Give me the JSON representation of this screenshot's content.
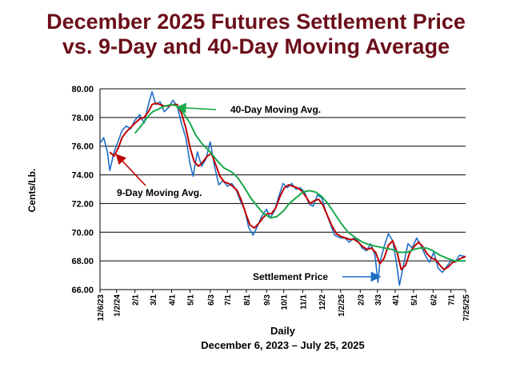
{
  "title_line1": "December 2025 Futures Settlement Price",
  "title_line2": "vs. 9-Day and 40-Day Moving Average",
  "colors": {
    "title": "#6b0f1a",
    "settlement": "#1f6fc5",
    "ma9": "#c00000",
    "ma40": "#1aa84a",
    "grid": "#000000"
  },
  "chart_data": {
    "type": "line",
    "xlabel": "Daily",
    "subtitle": "December 6, 2023 – July 25, 2025",
    "ylabel": "Cents/Lb.",
    "ylim": [
      66.0,
      80.0
    ],
    "yticks": [
      "66.00",
      "68.00",
      "70.00",
      "72.00",
      "74.00",
      "76.00",
      "78.00",
      "80.00"
    ],
    "xlim": [
      "2023-12-06",
      "2025-07-25"
    ],
    "xticks": [
      {
        "label": "12/6/23",
        "date": "2023-12-06"
      },
      {
        "label": "1/2/24",
        "date": "2024-01-02"
      },
      {
        "label": "2/1",
        "date": "2024-02-01"
      },
      {
        "label": "3/1",
        "date": "2024-03-01"
      },
      {
        "label": "4/1",
        "date": "2024-04-01"
      },
      {
        "label": "5/1",
        "date": "2024-05-01"
      },
      {
        "label": "6/3",
        "date": "2024-06-03"
      },
      {
        "label": "7/1",
        "date": "2024-07-01"
      },
      {
        "label": "8/1",
        "date": "2024-08-01"
      },
      {
        "label": "9/3",
        "date": "2024-09-03"
      },
      {
        "label": "10/1",
        "date": "2024-10-01"
      },
      {
        "label": "11/1",
        "date": "2024-11-01"
      },
      {
        "label": "12/2",
        "date": "2024-12-02"
      },
      {
        "label": "1/2/25",
        "date": "2025-01-02"
      },
      {
        "label": "2/3",
        "date": "2025-02-03"
      },
      {
        "label": "3/3",
        "date": "2025-03-03"
      },
      {
        "label": "4/1",
        "date": "2025-04-01"
      },
      {
        "label": "5/1",
        "date": "2025-05-01"
      },
      {
        "label": "6/2",
        "date": "2025-06-02"
      },
      {
        "label": "7/1",
        "date": "2025-07-01"
      },
      {
        "label": "7/25/25",
        "date": "2025-07-25"
      }
    ],
    "series": [
      {
        "name": "Settlement Price",
        "color": "#1f6fc5",
        "points": [
          [
            "2023-12-06",
            76.2
          ],
          [
            "2023-12-12",
            76.6
          ],
          [
            "2023-12-18",
            75.6
          ],
          [
            "2023-12-22",
            74.3
          ],
          [
            "2023-12-29",
            75.6
          ],
          [
            "2024-01-05",
            76.4
          ],
          [
            "2024-01-11",
            77.1
          ],
          [
            "2024-01-18",
            77.4
          ],
          [
            "2024-01-25",
            77.2
          ],
          [
            "2024-02-01",
            77.8
          ],
          [
            "2024-02-09",
            78.2
          ],
          [
            "2024-02-16",
            77.6
          ],
          [
            "2024-02-23",
            78.9
          ],
          [
            "2024-02-29",
            79.8
          ],
          [
            "2024-03-06",
            78.9
          ],
          [
            "2024-03-13",
            79.1
          ],
          [
            "2024-03-20",
            78.4
          ],
          [
            "2024-03-27",
            78.7
          ],
          [
            "2024-04-03",
            79.2
          ],
          [
            "2024-04-10",
            78.8
          ],
          [
            "2024-04-17",
            77.6
          ],
          [
            "2024-04-24",
            76.6
          ],
          [
            "2024-05-01",
            74.8
          ],
          [
            "2024-05-06",
            73.9
          ],
          [
            "2024-05-13",
            75.6
          ],
          [
            "2024-05-20",
            74.6
          ],
          [
            "2024-05-27",
            75.1
          ],
          [
            "2024-06-03",
            76.3
          ],
          [
            "2024-06-10",
            74.6
          ],
          [
            "2024-06-17",
            73.3
          ],
          [
            "2024-06-24",
            73.6
          ],
          [
            "2024-07-01",
            73.2
          ],
          [
            "2024-07-08",
            73.4
          ],
          [
            "2024-07-15",
            73.0
          ],
          [
            "2024-07-22",
            72.2
          ],
          [
            "2024-07-29",
            71.6
          ],
          [
            "2024-08-05",
            70.3
          ],
          [
            "2024-08-12",
            69.8
          ],
          [
            "2024-08-19",
            70.4
          ],
          [
            "2024-08-26",
            71.1
          ],
          [
            "2024-09-03",
            71.6
          ],
          [
            "2024-09-09",
            71.0
          ],
          [
            "2024-09-16",
            71.5
          ],
          [
            "2024-09-23",
            72.5
          ],
          [
            "2024-09-30",
            73.4
          ],
          [
            "2024-10-07",
            73.1
          ],
          [
            "2024-10-14",
            73.4
          ],
          [
            "2024-10-21",
            73.0
          ],
          [
            "2024-10-28",
            73.1
          ],
          [
            "2024-11-04",
            72.8
          ],
          [
            "2024-11-11",
            72.0
          ],
          [
            "2024-11-18",
            71.8
          ],
          [
            "2024-11-25",
            72.6
          ],
          [
            "2024-12-02",
            72.4
          ],
          [
            "2024-12-09",
            71.4
          ],
          [
            "2024-12-16",
            70.6
          ],
          [
            "2024-12-23",
            69.8
          ],
          [
            "2025-01-02",
            69.6
          ],
          [
            "2025-01-09",
            69.6
          ],
          [
            "2025-01-16",
            69.3
          ],
          [
            "2025-01-23",
            69.6
          ],
          [
            "2025-01-30",
            69.4
          ],
          [
            "2025-02-06",
            68.9
          ],
          [
            "2025-02-13",
            68.7
          ],
          [
            "2025-02-20",
            69.2
          ],
          [
            "2025-02-27",
            68.4
          ],
          [
            "2025-03-04",
            66.5
          ],
          [
            "2025-03-07",
            67.9
          ],
          [
            "2025-03-14",
            69.0
          ],
          [
            "2025-03-21",
            69.9
          ],
          [
            "2025-03-28",
            69.4
          ],
          [
            "2025-04-04",
            67.6
          ],
          [
            "2025-04-08",
            66.3
          ],
          [
            "2025-04-15",
            67.8
          ],
          [
            "2025-04-22",
            69.2
          ],
          [
            "2025-04-29",
            68.9
          ],
          [
            "2025-05-06",
            69.6
          ],
          [
            "2025-05-13",
            69.1
          ],
          [
            "2025-05-20",
            68.4
          ],
          [
            "2025-05-27",
            67.9
          ],
          [
            "2025-06-03",
            68.6
          ],
          [
            "2025-06-10",
            67.5
          ],
          [
            "2025-06-17",
            67.2
          ],
          [
            "2025-06-24",
            67.6
          ],
          [
            "2025-07-01",
            68.0
          ],
          [
            "2025-07-08",
            67.9
          ],
          [
            "2025-07-15",
            68.4
          ],
          [
            "2025-07-25",
            68.3
          ]
        ]
      },
      {
        "name": "9-Day Moving Avg.",
        "color": "#c00000",
        "points": [
          [
            "2023-12-22",
            75.6
          ],
          [
            "2023-12-29",
            75.3
          ],
          [
            "2024-01-05",
            75.9
          ],
          [
            "2024-01-11",
            76.6
          ],
          [
            "2024-01-18",
            77.0
          ],
          [
            "2024-01-25",
            77.3
          ],
          [
            "2024-02-01",
            77.6
          ],
          [
            "2024-02-09",
            77.9
          ],
          [
            "2024-02-16",
            78.0
          ],
          [
            "2024-02-23",
            78.4
          ],
          [
            "2024-02-29",
            78.9
          ],
          [
            "2024-03-06",
            79.0
          ],
          [
            "2024-03-13",
            78.9
          ],
          [
            "2024-03-20",
            78.8
          ],
          [
            "2024-03-27",
            78.8
          ],
          [
            "2024-04-03",
            78.9
          ],
          [
            "2024-04-10",
            78.9
          ],
          [
            "2024-04-17",
            78.3
          ],
          [
            "2024-04-24",
            77.3
          ],
          [
            "2024-05-01",
            75.9
          ],
          [
            "2024-05-08",
            74.9
          ],
          [
            "2024-05-15",
            74.6
          ],
          [
            "2024-05-22",
            74.9
          ],
          [
            "2024-05-29",
            75.3
          ],
          [
            "2024-06-05",
            75.5
          ],
          [
            "2024-06-12",
            74.7
          ],
          [
            "2024-06-19",
            73.9
          ],
          [
            "2024-06-26",
            73.5
          ],
          [
            "2024-07-03",
            73.4
          ],
          [
            "2024-07-10",
            73.2
          ],
          [
            "2024-07-17",
            72.9
          ],
          [
            "2024-07-24",
            72.2
          ],
          [
            "2024-07-31",
            71.3
          ],
          [
            "2024-08-07",
            70.5
          ],
          [
            "2024-08-14",
            70.3
          ],
          [
            "2024-08-21",
            70.6
          ],
          [
            "2024-08-28",
            71.0
          ],
          [
            "2024-09-04",
            71.3
          ],
          [
            "2024-09-11",
            71.3
          ],
          [
            "2024-09-18",
            71.7
          ],
          [
            "2024-09-25",
            72.5
          ],
          [
            "2024-10-02",
            73.1
          ],
          [
            "2024-10-09",
            73.3
          ],
          [
            "2024-10-16",
            73.2
          ],
          [
            "2024-10-23",
            73.1
          ],
          [
            "2024-10-30",
            72.9
          ],
          [
            "2024-11-06",
            72.5
          ],
          [
            "2024-11-13",
            72.0
          ],
          [
            "2024-11-20",
            72.2
          ],
          [
            "2024-11-27",
            72.3
          ],
          [
            "2024-12-04",
            71.9
          ],
          [
            "2024-12-11",
            71.2
          ],
          [
            "2024-12-18",
            70.5
          ],
          [
            "2024-12-26",
            69.9
          ],
          [
            "2025-01-03",
            69.7
          ],
          [
            "2025-01-10",
            69.6
          ],
          [
            "2025-01-17",
            69.5
          ],
          [
            "2025-01-24",
            69.5
          ],
          [
            "2025-01-31",
            69.3
          ],
          [
            "2025-02-07",
            69.0
          ],
          [
            "2025-02-14",
            68.8
          ],
          [
            "2025-02-21",
            68.9
          ],
          [
            "2025-02-28",
            68.6
          ],
          [
            "2025-03-07",
            67.8
          ],
          [
            "2025-03-14",
            68.2
          ],
          [
            "2025-03-21",
            69.1
          ],
          [
            "2025-03-28",
            69.4
          ],
          [
            "2025-04-04",
            68.6
          ],
          [
            "2025-04-11",
            67.4
          ],
          [
            "2025-04-18",
            67.7
          ],
          [
            "2025-04-25",
            68.6
          ],
          [
            "2025-05-02",
            69.0
          ],
          [
            "2025-05-09",
            69.3
          ],
          [
            "2025-05-16",
            69.0
          ],
          [
            "2025-05-23",
            68.5
          ],
          [
            "2025-05-30",
            68.2
          ],
          [
            "2025-06-06",
            68.1
          ],
          [
            "2025-06-13",
            67.7
          ],
          [
            "2025-06-20",
            67.4
          ],
          [
            "2025-06-27",
            67.6
          ],
          [
            "2025-07-04",
            67.9
          ],
          [
            "2025-07-11",
            68.0
          ],
          [
            "2025-07-18",
            68.2
          ],
          [
            "2025-07-25",
            68.3
          ]
        ]
      },
      {
        "name": "40-Day Moving Avg.",
        "color": "#1aa84a",
        "points": [
          [
            "2024-02-01",
            76.9
          ],
          [
            "2024-02-09",
            77.3
          ],
          [
            "2024-02-16",
            77.7
          ],
          [
            "2024-02-23",
            78.1
          ],
          [
            "2024-03-01",
            78.4
          ],
          [
            "2024-03-11",
            78.6
          ],
          [
            "2024-03-21",
            78.8
          ],
          [
            "2024-04-01",
            78.9
          ],
          [
            "2024-04-10",
            78.8
          ],
          [
            "2024-04-19",
            78.4
          ],
          [
            "2024-05-01",
            77.6
          ],
          [
            "2024-05-10",
            76.8
          ],
          [
            "2024-05-20",
            76.2
          ],
          [
            "2024-06-03",
            75.6
          ],
          [
            "2024-06-14",
            75.0
          ],
          [
            "2024-06-25",
            74.5
          ],
          [
            "2024-07-08",
            74.2
          ],
          [
            "2024-07-18",
            73.8
          ],
          [
            "2024-07-29",
            73.1
          ],
          [
            "2024-08-08",
            72.4
          ],
          [
            "2024-08-19",
            71.8
          ],
          [
            "2024-08-29",
            71.3
          ],
          [
            "2024-09-10",
            71.0
          ],
          [
            "2024-09-20",
            71.1
          ],
          [
            "2024-10-01",
            71.5
          ],
          [
            "2024-10-10",
            72.0
          ],
          [
            "2024-10-21",
            72.4
          ],
          [
            "2024-11-01",
            72.8
          ],
          [
            "2024-11-12",
            72.9
          ],
          [
            "2024-11-22",
            72.8
          ],
          [
            "2024-12-02",
            72.5
          ],
          [
            "2024-12-12",
            72.0
          ],
          [
            "2024-12-23",
            71.3
          ],
          [
            "2025-01-03",
            70.6
          ],
          [
            "2025-01-14",
            70.0
          ],
          [
            "2025-01-27",
            69.6
          ],
          [
            "2025-02-07",
            69.3
          ],
          [
            "2025-02-20",
            69.1
          ],
          [
            "2025-03-03",
            69.0
          ],
          [
            "2025-03-14",
            68.9
          ],
          [
            "2025-03-27",
            68.8
          ],
          [
            "2025-04-07",
            68.6
          ],
          [
            "2025-04-21",
            68.6
          ],
          [
            "2025-05-01",
            68.8
          ],
          [
            "2025-05-12",
            68.9
          ],
          [
            "2025-05-22",
            68.9
          ],
          [
            "2025-06-02",
            68.7
          ],
          [
            "2025-06-13",
            68.4
          ],
          [
            "2025-06-24",
            68.2
          ],
          [
            "2025-07-07",
            68.0
          ],
          [
            "2025-07-16",
            68.0
          ],
          [
            "2025-07-25",
            68.0
          ]
        ]
      }
    ],
    "annotations": [
      {
        "text": "40-Day Moving Avg.",
        "series": "40-Day Moving Avg.",
        "arrow_to": [
          "2024-04-10",
          78.7
        ],
        "color": "#1aa84a"
      },
      {
        "text": "9-Day Moving Avg.",
        "series": "9-Day Moving Avg.",
        "arrow_to": [
          "2024-01-02",
          75.4
        ],
        "color": "#c00000"
      },
      {
        "text": "Settlement Price",
        "series": "Settlement Price",
        "arrow_to": [
          "2025-03-07",
          66.9
        ],
        "color": "#1f6fc5"
      }
    ],
    "grid": true
  }
}
